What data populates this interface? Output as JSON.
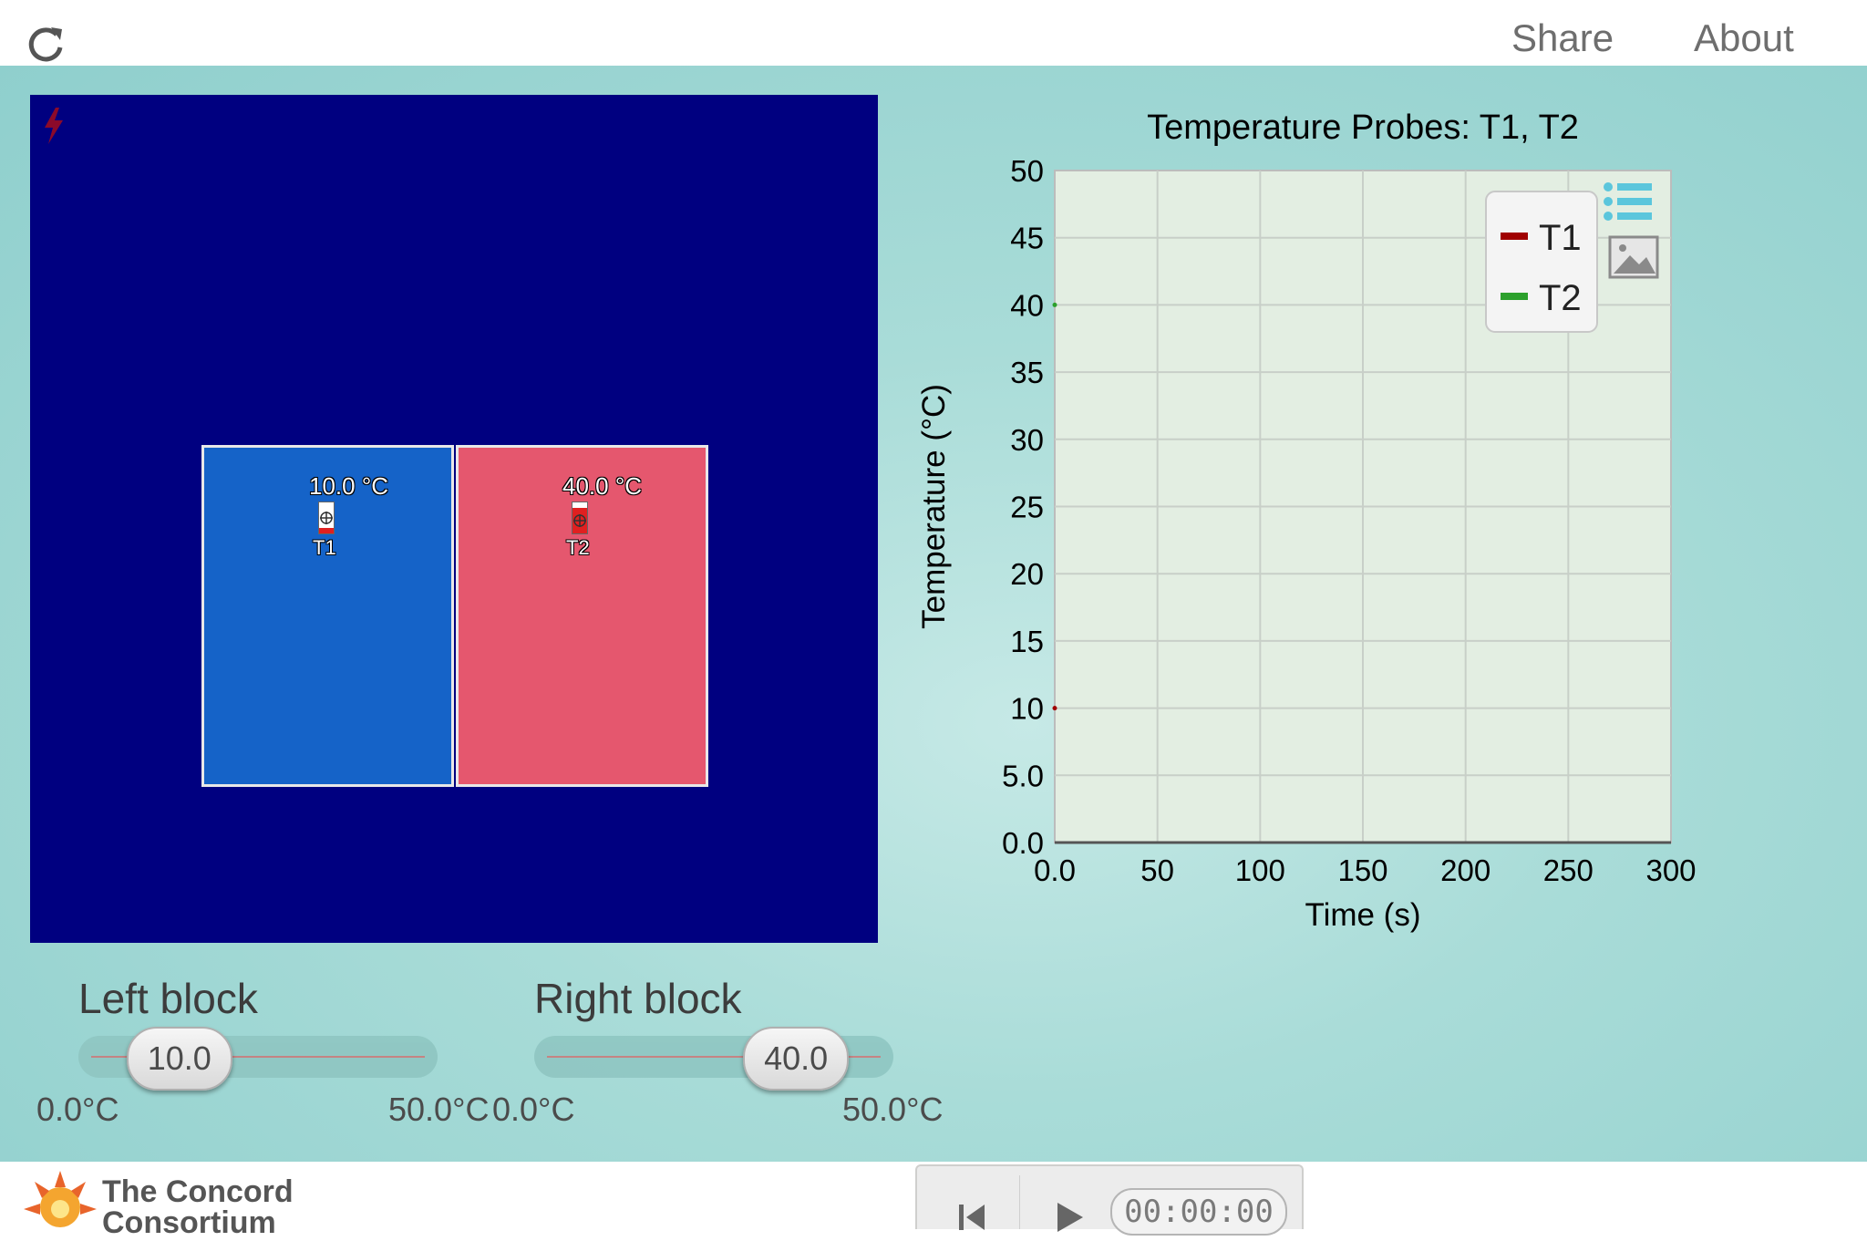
{
  "header": {
    "reload_icon": "reload-icon",
    "share_label": "Share",
    "about_label": "About"
  },
  "simulation": {
    "background_color": "#000080",
    "left_block": {
      "color": "#1563c8",
      "temperature": "10.0 °C",
      "probe": "T1"
    },
    "right_block": {
      "color": "#e5576e",
      "temperature": "40.0 °C",
      "probe": "T2"
    },
    "lightning_icon": "lightning-icon"
  },
  "sliders": {
    "left": {
      "title": "Left block",
      "value": "10.0",
      "min_label": "0.0°C",
      "max_label": "50.0°C",
      "fraction": 0.2
    },
    "right": {
      "title": "Right block",
      "value": "40.0",
      "min_label": "0.0°C",
      "max_label": "50.0°C",
      "fraction": 0.8
    }
  },
  "chart_data": {
    "type": "line",
    "title": "Temperature Probes: T1, T2",
    "xlabel": "Time (s)",
    "ylabel": "Temperature (°C)",
    "xlim": [
      0,
      300
    ],
    "ylim": [
      0,
      50
    ],
    "xticks": [
      "0.0",
      "50",
      "100",
      "150",
      "200",
      "250",
      "300"
    ],
    "yticks": [
      "0.0",
      "5.0",
      "10",
      "15",
      "20",
      "25",
      "30",
      "35",
      "40",
      "45",
      "50"
    ],
    "grid": true,
    "legend_position": "top-right",
    "series": [
      {
        "name": "T1",
        "color": "#a00000",
        "x": [
          0
        ],
        "y": [
          10
        ]
      },
      {
        "name": "T2",
        "color": "#2ca02c",
        "x": [
          0
        ],
        "y": [
          40
        ]
      }
    ]
  },
  "footer": {
    "logo_line1": "The Concord",
    "logo_line2": "Consortium",
    "time": "00:00:00",
    "reset_icon": "reset-icon",
    "play_icon": "play-icon"
  }
}
